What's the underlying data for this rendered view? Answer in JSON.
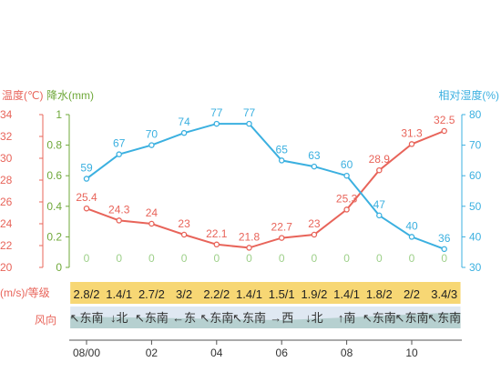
{
  "chart_data": {
    "type": "line",
    "axes": {
      "temperature": {
        "label": "温度(℃)",
        "min": 20,
        "max": 34,
        "step": 2,
        "color": "#e8645a"
      },
      "precipitation": {
        "label": "降水(mm)",
        "min": 0,
        "max": 1,
        "ticks": [
          "0",
          "0.2",
          "0.4",
          "0.6",
          "0.8",
          "1"
        ],
        "color": "#6fa83a"
      },
      "humidity": {
        "label": "相对湿度(%)",
        "min": 30,
        "max": 80,
        "step": 10,
        "color": "#3bb0e0"
      }
    },
    "x_ticks": [
      "08/00",
      "02",
      "04",
      "06",
      "08",
      "10"
    ],
    "series": [
      {
        "key": "temperature",
        "values": [
          25.4,
          24.3,
          24,
          23,
          22.1,
          21.8,
          22.7,
          23,
          25.3,
          28.9,
          31.3,
          32.5
        ],
        "color": "#e8645a"
      },
      {
        "key": "humidity",
        "values": [
          59,
          67,
          70,
          74,
          77,
          77,
          65,
          63,
          60,
          47,
          40,
          36
        ],
        "color": "#3bb0e0"
      },
      {
        "key": "precipitation",
        "values": [
          0,
          0,
          0,
          0,
          0,
          0,
          0,
          0,
          0,
          0,
          0,
          0
        ],
        "color": "#9ed08a"
      }
    ],
    "wind": {
      "row_label_level": "(m/s)/等级",
      "row_label_dir": "风向",
      "levels": [
        "2.8/2",
        "1.4/1",
        "2.7/2",
        "3/2",
        "2.2/2",
        "1.4/1",
        "1.5/1",
        "1.9/2",
        "1.4/1",
        "1.8/2",
        "2/2",
        "3.4/3"
      ],
      "directions": [
        "↖东南",
        "↓北",
        "↖东南",
        "←东",
        "↖东南",
        "↖东南",
        "→西",
        "↓北",
        "↑南",
        "↖东南",
        "↖东南",
        "↖东南"
      ]
    }
  }
}
